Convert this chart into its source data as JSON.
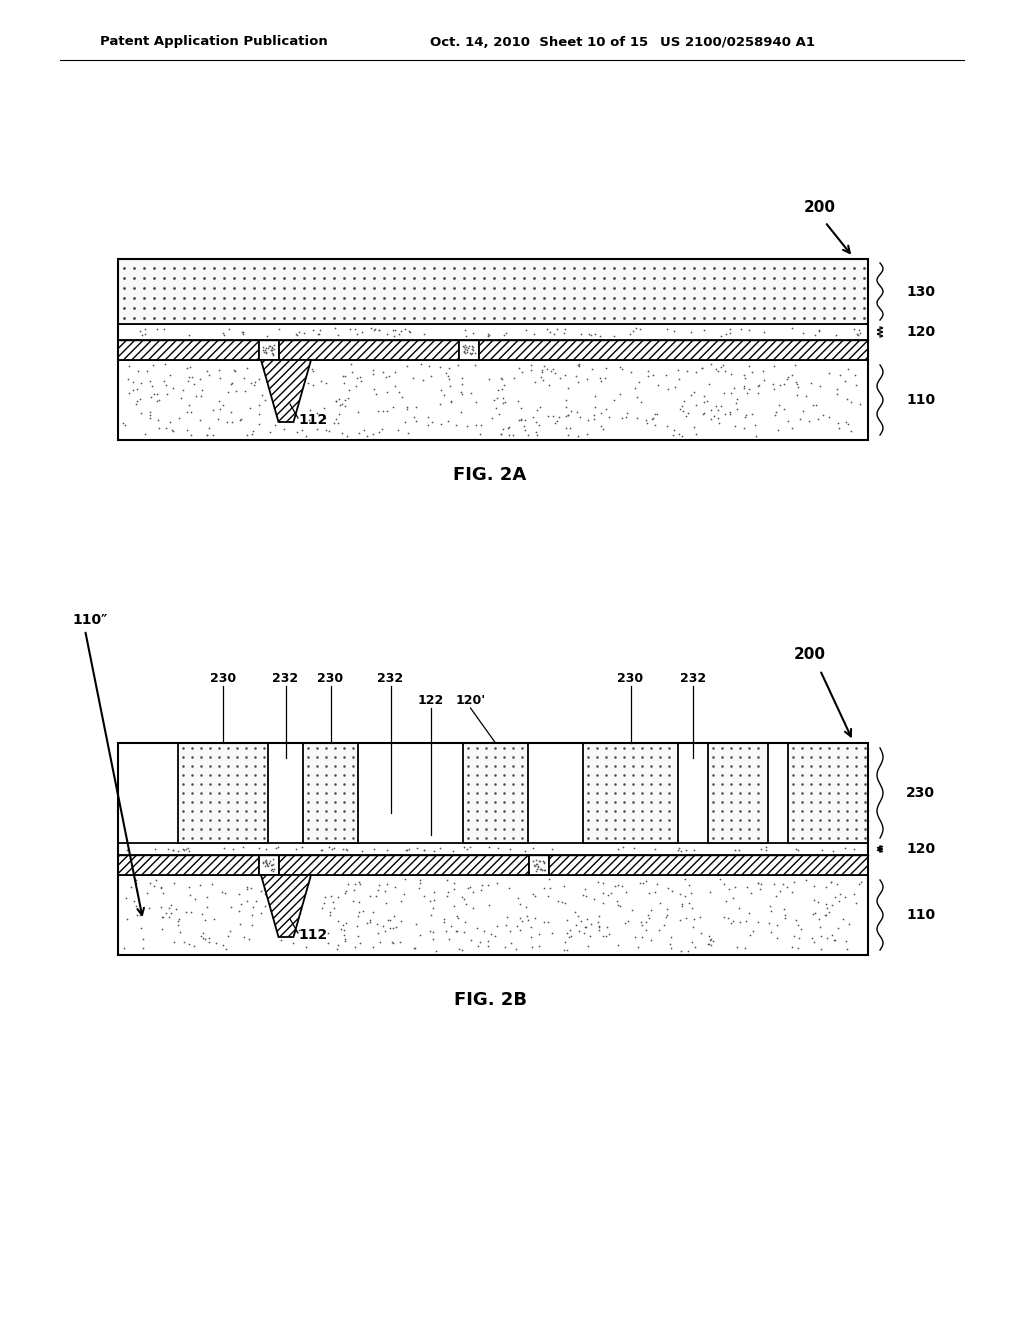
{
  "bg_color": "#ffffff",
  "header_left": "Patent Application Publication",
  "header_mid": "Oct. 14, 2010  Sheet 10 of 15",
  "header_right": "US 2100/0258940 A1",
  "fig2a_label": "FIG. 2A",
  "fig2b_label": "FIG. 2B",
  "label_200a": "200",
  "label_200b": "200",
  "label_110a": "110",
  "label_110b": "110",
  "label_120a": "120",
  "label_120b": "120",
  "label_130": "130",
  "label_112a": "112",
  "label_112b": "112",
  "label_122": "122",
  "label_120p": "120'",
  "label_110pp": "110\"",
  "label_230": "230",
  "label_232": "232"
}
